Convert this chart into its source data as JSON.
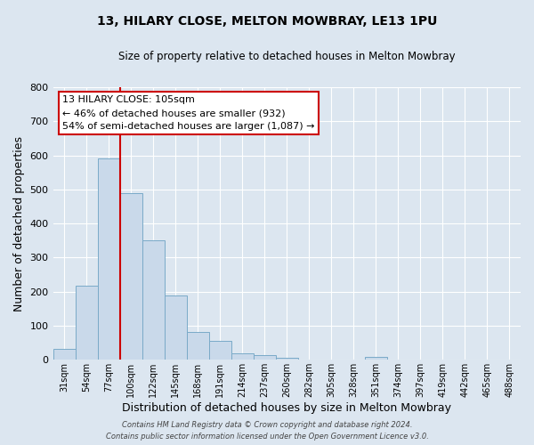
{
  "title": "13, HILARY CLOSE, MELTON MOWBRAY, LE13 1PU",
  "subtitle": "Size of property relative to detached houses in Melton Mowbray",
  "xlabel": "Distribution of detached houses by size in Melton Mowbray",
  "ylabel": "Number of detached properties",
  "bin_labels": [
    "31sqm",
    "54sqm",
    "77sqm",
    "100sqm",
    "122sqm",
    "145sqm",
    "168sqm",
    "191sqm",
    "214sqm",
    "237sqm",
    "260sqm",
    "282sqm",
    "305sqm",
    "328sqm",
    "351sqm",
    "374sqm",
    "397sqm",
    "419sqm",
    "442sqm",
    "465sqm",
    "488sqm"
  ],
  "bar_values": [
    33,
    218,
    590,
    490,
    350,
    188,
    83,
    55,
    18,
    15,
    7,
    0,
    0,
    0,
    8,
    0,
    0,
    0,
    0,
    0,
    0
  ],
  "bar_color": "#c9d9ea",
  "bar_edge_color": "#7aaac8",
  "reference_line_color": "#cc0000",
  "ylim": [
    0,
    800
  ],
  "yticks": [
    0,
    100,
    200,
    300,
    400,
    500,
    600,
    700,
    800
  ],
  "annotation_line1": "13 HILARY CLOSE: 105sqm",
  "annotation_line2": "← 46% of detached houses are smaller (932)",
  "annotation_line3": "54% of semi-detached houses are larger (1,087) →",
  "annotation_box_color": "#ffffff",
  "annotation_box_edge_color": "#cc0000",
  "footer_text": "Contains HM Land Registry data © Crown copyright and database right 2024.\nContains public sector information licensed under the Open Government Licence v3.0.",
  "bg_color": "#dce6f0",
  "plot_bg_color": "#dce6f0",
  "grid_color": "#ffffff"
}
